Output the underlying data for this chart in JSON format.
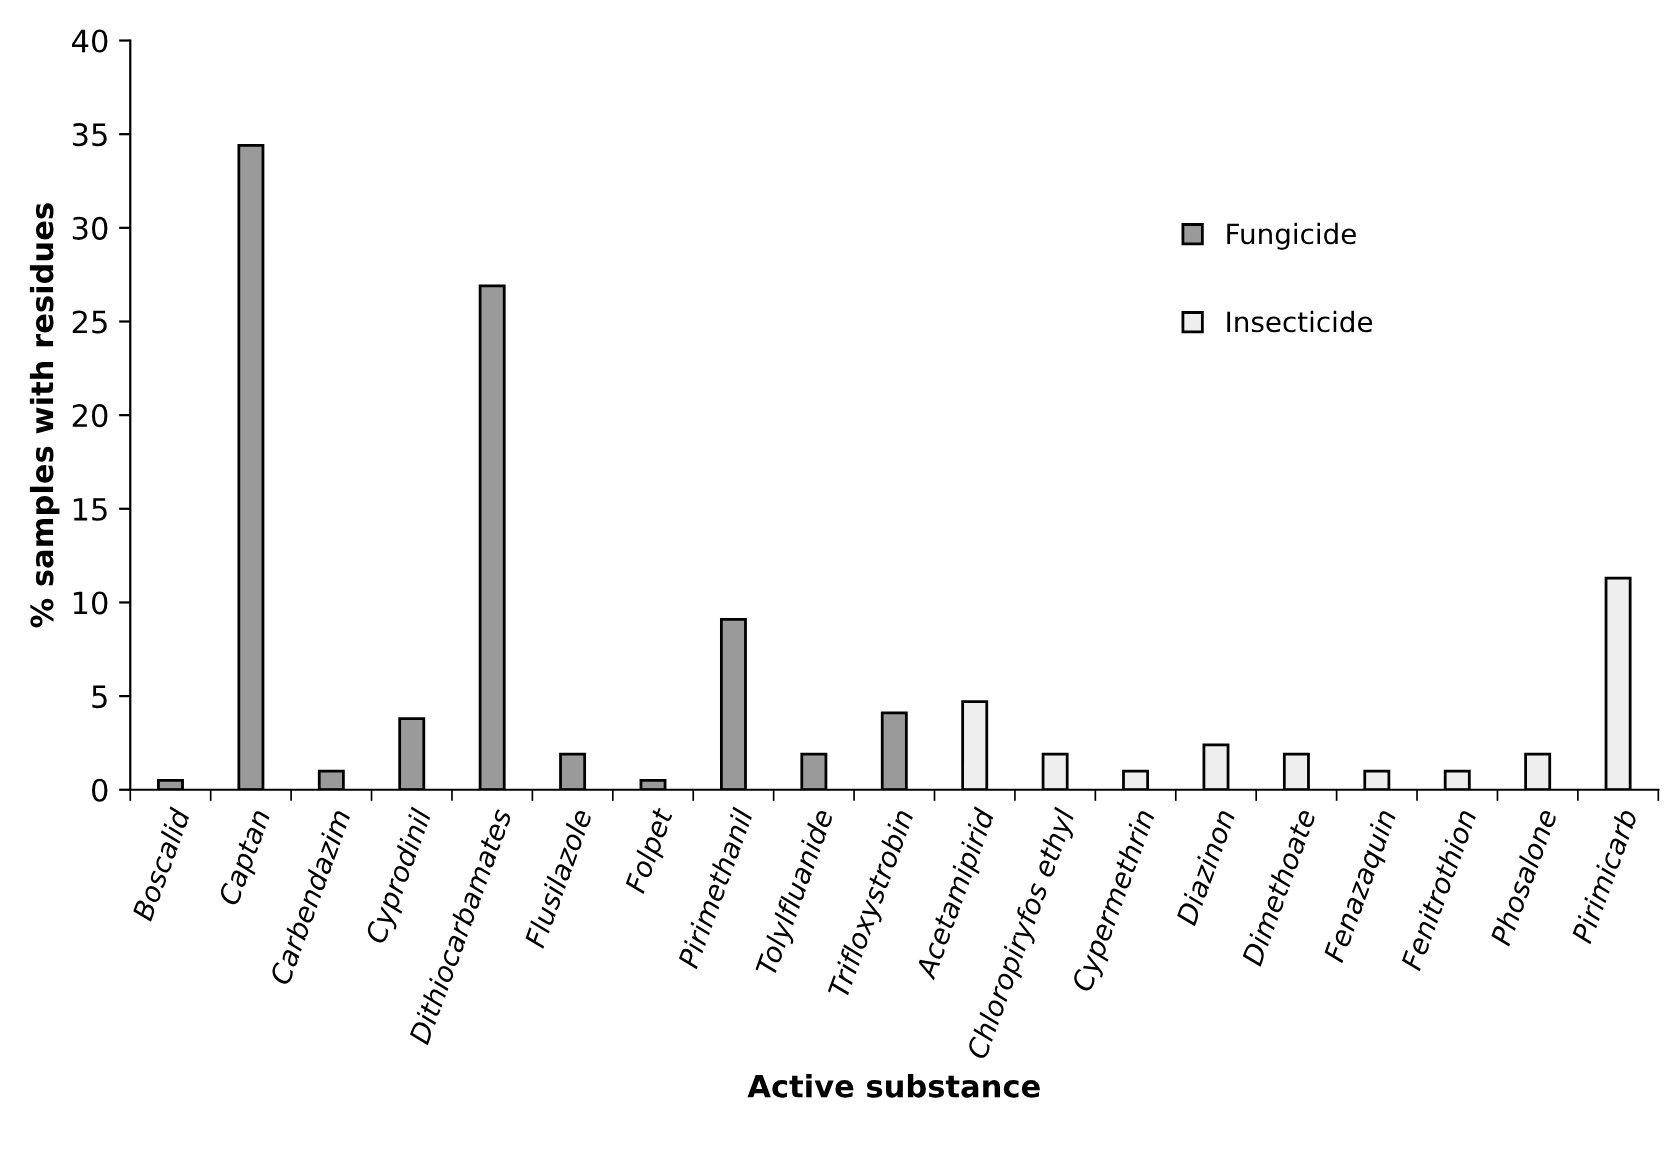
{
  "chart_data": {
    "type": "bar",
    "xlabel": "Active substance",
    "ylabel": "% samples with residues",
    "categories": [
      "Boscalid",
      "Captan",
      "Carbendazim",
      "Cyprodinil",
      "Dithiocarbamates",
      "Flusilazole",
      "Folpet",
      "Pirimethanil",
      "Tolylfluanide",
      "Trifloxystrobin",
      "Acetamipirid",
      "Chloropiryfos ethyl",
      "Cypermethrin",
      "Diazinon",
      "Dimethoate",
      "Fenazaquin",
      "Fenitrothion",
      "Phosalone",
      "Pirimicarb"
    ],
    "series": [
      {
        "name": "Fungicide",
        "color": "#9a9a9a",
        "values": [
          0.5,
          34.4,
          1.0,
          3.8,
          26.9,
          1.9,
          0.5,
          9.1,
          1.9,
          4.1,
          null,
          null,
          null,
          null,
          null,
          null,
          null,
          null,
          null
        ]
      },
      {
        "name": "Insecticide",
        "color": "#eeeeee",
        "values": [
          null,
          null,
          null,
          null,
          null,
          null,
          null,
          null,
          null,
          null,
          4.7,
          1.9,
          1.0,
          2.4,
          1.9,
          1.0,
          1.0,
          1.9,
          11.3
        ]
      }
    ],
    "ylim": [
      0,
      40
    ],
    "yticks": [
      0,
      5,
      10,
      15,
      20,
      25,
      30,
      35,
      40
    ],
    "grid": false,
    "legend": "right"
  }
}
